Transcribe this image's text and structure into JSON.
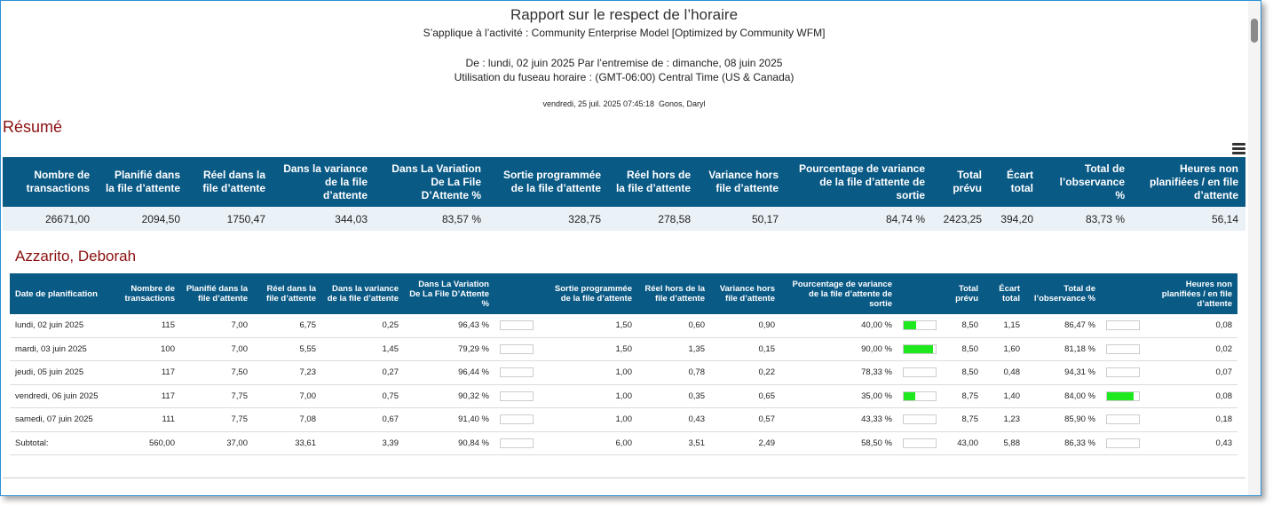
{
  "header": {
    "title": "Rapport sur le respect de l’horaire",
    "subtitle": "S’applique à l’activité : Community Enterprise Model [Optimized by Community WFM]",
    "date_range": "De : lundi, 02 juin 2025 Par l’entremise de : dimanche, 08 juin 2025",
    "timezone": "Utilisation du fuseau horaire : (GMT-06:00) Central Time (US & Canada)",
    "generated": "vendredi, 25 juil. 2025 07:45:18  Gonos, Daryl"
  },
  "summary": {
    "title": "Résumé",
    "columns": [
      "Nombre de transactions",
      "Planifié dans la file d’attente",
      "Réel dans la file d’attente",
      "Dans la variance de la file d’attente",
      "Dans La Variation De La File D’Attente %",
      "Sortie programmée de la file d’attente",
      "Réel hors de la file d’attente",
      "Variance hors file d’attente",
      "Pourcentage de variance de la file d’attente de sortie",
      "Total prévu",
      "Écart total",
      "Total de l’observance %",
      "Heures non planifiées / en file d’attente"
    ],
    "values": [
      "26671,00",
      "2094,50",
      "1750,47",
      "344,03",
      "83,57 %",
      "328,75",
      "278,58",
      "50,17",
      "84,74 %",
      "2423,25",
      "394,20",
      "83,73 %",
      "56,14"
    ]
  },
  "agent": {
    "name": "Azzarito, Deborah",
    "columns": [
      "Date de planification",
      "Nombre de transactions",
      "Planifié dans la file d’attente",
      "Réel dans la file d’attente",
      "Dans la variance de la file d’attente",
      "Dans La Variation De La File D’Attente %",
      "Sortie programmée de la file d’attente",
      "Réel hors de la file d’attente",
      "Variance hors file d’attente",
      "Pourcentage de variance de la file d’attente de sortie",
      "Total prévu",
      "Écart total",
      "Total de l’observance %",
      "Heures non planifiées / en file d’attente"
    ],
    "rows": [
      [
        "lundi, 02 juin 2025",
        "115",
        "7,00",
        "6,75",
        "0,25",
        "96,43 %",
        "1,50",
        "0,60",
        "0,90",
        "40,00 %",
        "8,50",
        "1,15",
        "86,47 %",
        "0,08"
      ],
      [
        "mardi, 03 juin 2025",
        "100",
        "7,00",
        "5,55",
        "1,45",
        "79,29 %",
        "1,50",
        "1,35",
        "0,15",
        "90,00 %",
        "8,50",
        "1,60",
        "81,18 %",
        "0,02"
      ],
      [
        "jeudi, 05 juin 2025",
        "117",
        "7,50",
        "7,23",
        "0,27",
        "96,44 %",
        "1,00",
        "0,78",
        "0,22",
        "78,33 %",
        "8,50",
        "0,48",
        "94,31 %",
        "0,07"
      ],
      [
        "vendredi, 06 juin 2025",
        "117",
        "7,75",
        "7,00",
        "0,75",
        "90,32 %",
        "1,00",
        "0,35",
        "0,65",
        "35,00 %",
        "8,75",
        "1,40",
        "84,00 %",
        "0,08"
      ],
      [
        "samedi, 07 juin 2025",
        "111",
        "7,75",
        "7,08",
        "0,67",
        "91,40 %",
        "1,00",
        "0,43",
        "0,57",
        "43,33 %",
        "8,75",
        "1,23",
        "85,90 %",
        "0,18"
      ]
    ],
    "subtotal": [
      "Subtotal:",
      "560,00",
      "37,00",
      "33,61",
      "3,39",
      "90,84 %",
      "6,00",
      "3,51",
      "2,49",
      "58,50 %",
      "43,00",
      "5,88",
      "86,33 %",
      "0,43"
    ]
  }
}
